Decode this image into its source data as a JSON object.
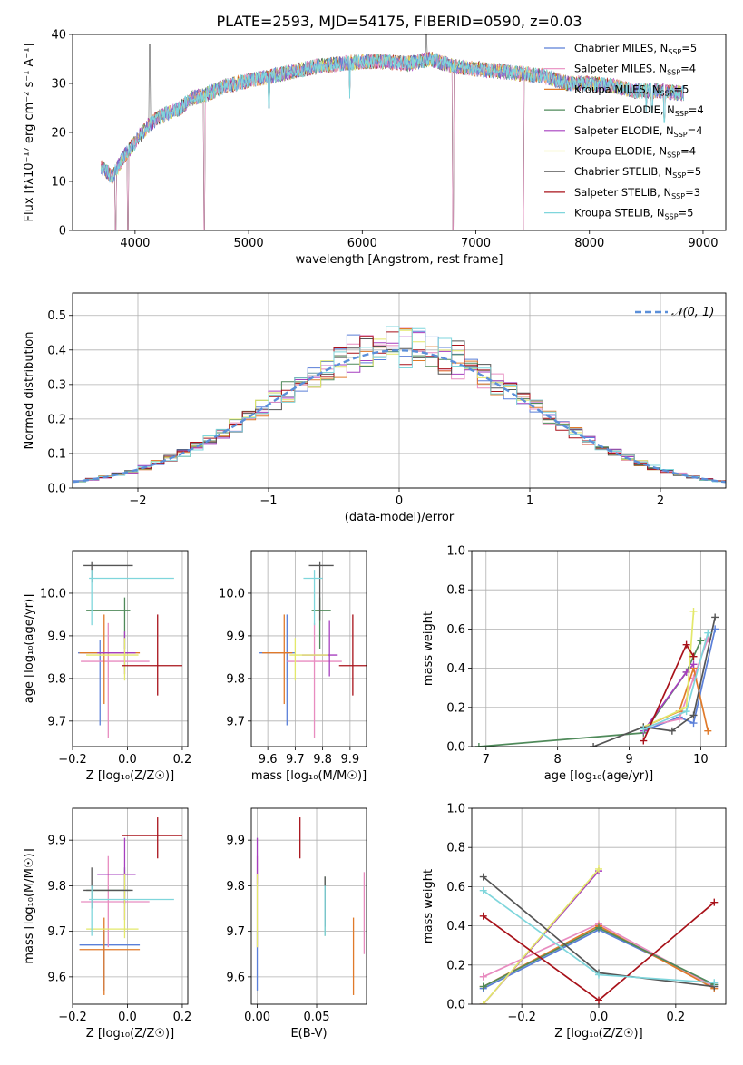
{
  "figure_title": "PLATE=2593, MJD=54175, FIBERID=0590, z=0.03",
  "colors": {
    "Chabrier MILES": "#5a7fd8",
    "Salpeter MILES": "#e88cc0",
    "Kroupa MILES": "#e07a2a",
    "Chabrier ELODIE": "#4f8a5a",
    "Salpeter ELODIE": "#a63fbf",
    "Kroupa ELODIE": "#e3e86a",
    "Chabrier STELIB": "#555555",
    "Salpeter STELIB": "#a8121a",
    "Kroupa STELIB": "#7fd6dc"
  },
  "legend": [
    {
      "model": "Chabrier MILES",
      "base": "Chabrier MILES, N",
      "sub": "SSP",
      "tail": "=5"
    },
    {
      "model": "Salpeter MILES",
      "base": "Salpeter MILES, N",
      "sub": "SSP",
      "tail": "=4"
    },
    {
      "model": "Kroupa MILES",
      "base": "Kroupa MILES, N",
      "sub": "SSP",
      "tail": "=5"
    },
    {
      "model": "Chabrier ELODIE",
      "base": "Chabrier ELODIE, N",
      "sub": "SSP",
      "tail": "=4"
    },
    {
      "model": "Salpeter ELODIE",
      "base": "Salpeter ELODIE, N",
      "sub": "SSP",
      "tail": "=4"
    },
    {
      "model": "Kroupa ELODIE",
      "base": "Kroupa ELODIE, N",
      "sub": "SSP",
      "tail": "=4"
    },
    {
      "model": "Chabrier STELIB",
      "base": "Chabrier STELIB, N",
      "sub": "SSP",
      "tail": "=5"
    },
    {
      "model": "Salpeter STELIB",
      "base": "Salpeter STELIB, N",
      "sub": "SSP",
      "tail": "=3"
    },
    {
      "model": "Kroupa STELIB",
      "base": "Kroupa STELIB, N",
      "sub": "SSP",
      "tail": "=5"
    }
  ],
  "chart_data": [
    {
      "id": "spectrum",
      "type": "line",
      "xlabel": "wavelength [Angstrom, rest frame]",
      "ylabel": "Flux [fλ10⁻¹⁷ erg cm⁻² s⁻¹ A⁻¹]",
      "xlim": [
        3450,
        9200
      ],
      "ylim": [
        0,
        40
      ],
      "xticks": [
        4000,
        5000,
        6000,
        7000,
        8000,
        9000
      ],
      "yticks": [
        0,
        10,
        20,
        30,
        40
      ],
      "grid": false,
      "legend_position": "top-right",
      "continuum": [
        [
          3700,
          13
        ],
        [
          3800,
          11
        ],
        [
          3900,
          15
        ],
        [
          4000,
          18
        ],
        [
          4100,
          21
        ],
        [
          4200,
          23
        ],
        [
          4300,
          24
        ],
        [
          4400,
          25
        ],
        [
          4500,
          27
        ],
        [
          4600,
          27.5
        ],
        [
          4700,
          28.5
        ],
        [
          4800,
          29.5
        ],
        [
          4900,
          30
        ],
        [
          5000,
          30.5
        ],
        [
          5100,
          31
        ],
        [
          5200,
          31.5
        ],
        [
          5400,
          32.5
        ],
        [
          5600,
          33.5
        ],
        [
          5800,
          34
        ],
        [
          6000,
          34.5
        ],
        [
          6200,
          34.5
        ],
        [
          6400,
          34
        ],
        [
          6600,
          35
        ],
        [
          6800,
          33.5
        ],
        [
          7000,
          33
        ],
        [
          7200,
          32.5
        ],
        [
          7400,
          32
        ],
        [
          7600,
          31.5
        ],
        [
          7800,
          30
        ],
        [
          8000,
          30
        ],
        [
          8200,
          29.5
        ],
        [
          8400,
          28.5
        ],
        [
          8600,
          28.5
        ],
        [
          8800,
          28
        ]
      ],
      "dips": [
        [
          3830,
          0
        ],
        [
          3935,
          0
        ],
        [
          4610,
          0
        ],
        [
          6800,
          0
        ],
        [
          7420,
          0
        ],
        [
          5180,
          25
        ],
        [
          5890,
          27
        ],
        [
          8500,
          24
        ],
        [
          8550,
          24
        ],
        [
          8660,
          22
        ]
      ],
      "spikes": [
        [
          4130,
          38
        ],
        [
          6563,
          40
        ]
      ]
    },
    {
      "id": "residual-histogram",
      "type": "histogram",
      "xlabel": "(data-model)/error",
      "ylabel": "Normed distribution",
      "xlim": [
        -2.5,
        2.5
      ],
      "ylim": [
        0,
        0.565
      ],
      "xticks": [
        -2,
        -1,
        0,
        1,
        2
      ],
      "yticks": [
        0.0,
        0.1,
        0.2,
        0.3,
        0.4,
        0.5
      ],
      "grid": true,
      "legend_position": "top-right",
      "reference_curve": {
        "label": "𝒩(0, 1)",
        "mean": 0,
        "sigma": 1
      },
      "bin_width": 0.1
    },
    {
      "id": "age-vs-Z",
      "type": "errorbar",
      "xlabel": "Z [log₁₀(Z/Z☉)]",
      "ylabel": "age  [log₁₀(age/yr)]",
      "xlim": [
        -0.2,
        0.22
      ],
      "ylim": [
        9.64,
        10.1
      ],
      "xticks": [
        -0.2,
        0.0,
        0.2
      ],
      "yticks": [
        9.7,
        9.8,
        9.9,
        10.0
      ],
      "grid": true,
      "points": [
        {
          "model": "Chabrier MILES",
          "x": -0.1,
          "xerr": [
            0.08,
            0.1
          ],
          "y": 9.86,
          "yerr": [
            0.17,
            0.03
          ]
        },
        {
          "model": "Salpeter MILES",
          "x": -0.07,
          "xerr": [
            0.1,
            0.15
          ],
          "y": 9.84,
          "yerr": [
            0.18,
            0.09
          ]
        },
        {
          "model": "Kroupa MILES",
          "x": -0.085,
          "xerr": [
            0.09,
            0.13
          ],
          "y": 9.86,
          "yerr": [
            0.12,
            0.09
          ]
        },
        {
          "model": "Chabrier ELODIE",
          "x": -0.01,
          "xerr": [
            0.14,
            0.02
          ],
          "y": 9.96,
          "yerr": [
            0.09,
            0.03
          ]
        },
        {
          "model": "Salpeter ELODIE",
          "x": -0.01,
          "xerr": [
            0.1,
            0.04
          ],
          "y": 9.86,
          "yerr": [
            0.05,
            0.05
          ]
        },
        {
          "model": "Kroupa ELODIE",
          "x": -0.01,
          "xerr": [
            0.14,
            0.05
          ],
          "y": 9.855,
          "yerr": [
            0.06,
            0.04
          ]
        },
        {
          "model": "Chabrier STELIB",
          "x": -0.13,
          "xerr": [
            0.03,
            0.15
          ],
          "y": 10.065,
          "yerr": [
            0.04,
            0.01
          ]
        },
        {
          "model": "Salpeter STELIB",
          "x": 0.11,
          "xerr": [
            0.13,
            0.09
          ],
          "y": 9.83,
          "yerr": [
            0.07,
            0.12
          ]
        },
        {
          "model": "Kroupa STELIB",
          "x": -0.13,
          "xerr": [
            0.01,
            0.3
          ],
          "y": 10.035,
          "yerr": [
            0.11,
            0.02
          ]
        }
      ]
    },
    {
      "id": "age-vs-mass",
      "type": "errorbar",
      "xlabel": "mass [log₁₀(M/M☉)]",
      "ylabel": "",
      "xlim": [
        9.54,
        9.96
      ],
      "ylim": [
        9.64,
        10.1
      ],
      "xticks": [
        9.6,
        9.7,
        9.8,
        9.9
      ],
      "yticks": [
        9.7,
        9.8,
        9.9,
        10.0
      ],
      "grid": true,
      "points": [
        {
          "model": "Chabrier MILES",
          "x": 9.67,
          "xerr": [
            0.1,
            0.03
          ],
          "y": 9.86,
          "yerr": [
            0.17,
            0.09
          ]
        },
        {
          "model": "Salpeter MILES",
          "x": 9.77,
          "xerr": [
            0.1,
            0.1
          ],
          "y": 9.84,
          "yerr": [
            0.18,
            0.09
          ]
        },
        {
          "model": "Kroupa MILES",
          "x": 9.66,
          "xerr": [
            0.08,
            0.03
          ],
          "y": 9.86,
          "yerr": [
            0.12,
            0.09
          ]
        },
        {
          "model": "Chabrier ELODIE",
          "x": 9.79,
          "xerr": [
            0.03,
            0.04
          ],
          "y": 9.96,
          "yerr": [
            0.09,
            0.03
          ]
        },
        {
          "model": "Salpeter ELODIE",
          "x": 9.825,
          "xerr": [
            0.1,
            0.03
          ],
          "y": 9.855,
          "yerr": [
            0.05,
            0.08
          ]
        },
        {
          "model": "Kroupa ELODIE",
          "x": 9.7,
          "xerr": [
            0.02,
            0.12
          ],
          "y": 9.855,
          "yerr": [
            0.06,
            0.04
          ]
        },
        {
          "model": "Chabrier STELIB",
          "x": 9.79,
          "xerr": [
            0.04,
            0.05
          ],
          "y": 10.065,
          "yerr": [
            0.13,
            0.01
          ]
        },
        {
          "model": "Salpeter STELIB",
          "x": 9.91,
          "xerr": [
            0.05,
            0.05
          ],
          "y": 9.83,
          "yerr": [
            0.07,
            0.12
          ]
        },
        {
          "model": "Kroupa STELIB",
          "x": 9.77,
          "xerr": [
            0.04,
            0.03
          ],
          "y": 10.035,
          "yerr": [
            0.11,
            0.02
          ]
        }
      ]
    },
    {
      "id": "mass-weight-vs-age",
      "type": "line",
      "xlabel": "age  [log₁₀(age/yr)]",
      "ylabel": "mass weight",
      "xlim": [
        6.8,
        10.35
      ],
      "ylim": [
        0,
        1
      ],
      "xticks": [
        7,
        8,
        9,
        10
      ],
      "yticks": [
        0.0,
        0.2,
        0.4,
        0.6,
        0.8,
        1.0
      ],
      "grid": true,
      "series": [
        {
          "model": "Chabrier MILES",
          "x": [
            9.2,
            9.7,
            9.9,
            10.2
          ],
          "y": [
            0.08,
            0.15,
            0.12,
            0.6
          ]
        },
        {
          "model": "Salpeter MILES",
          "x": [
            9.2,
            9.7,
            9.9,
            10.1
          ],
          "y": [
            0.1,
            0.14,
            0.35,
            0.55
          ]
        },
        {
          "model": "Kroupa MILES",
          "x": [
            9.2,
            9.7,
            9.9,
            10.1
          ],
          "y": [
            0.1,
            0.18,
            0.4,
            0.08
          ]
        },
        {
          "model": "Chabrier ELODIE",
          "x": [
            6.9,
            9.2,
            9.8,
            10.0
          ],
          "y": [
            0.0,
            0.07,
            0.38,
            0.54
          ]
        },
        {
          "model": "Salpeter ELODIE",
          "x": [
            9.2,
            9.8,
            9.9
          ],
          "y": [
            0.08,
            0.38,
            0.42
          ]
        },
        {
          "model": "Kroupa ELODIE",
          "x": [
            9.2,
            9.8,
            9.9
          ],
          "y": [
            0.1,
            0.2,
            0.69
          ]
        },
        {
          "model": "Chabrier STELIB",
          "x": [
            8.5,
            9.2,
            9.6,
            9.9,
            10.2
          ],
          "y": [
            0.0,
            0.1,
            0.08,
            0.16,
            0.66
          ]
        },
        {
          "model": "Salpeter STELIB",
          "x": [
            9.2,
            9.8,
            9.9
          ],
          "y": [
            0.03,
            0.52,
            0.46
          ]
        },
        {
          "model": "Kroupa STELIB",
          "x": [
            9.2,
            9.8,
            10.1
          ],
          "y": [
            0.09,
            0.18,
            0.58
          ]
        }
      ]
    },
    {
      "id": "mass-vs-Z",
      "type": "errorbar",
      "xlabel": "Z [log₁₀(Z/Z☉)]",
      "ylabel": "mass [log₁₀(M/M☉)]",
      "xlim": [
        -0.2,
        0.22
      ],
      "ylim": [
        9.54,
        9.97
      ],
      "xticks": [
        -0.2,
        0.0,
        0.2
      ],
      "yticks": [
        9.6,
        9.7,
        9.8,
        9.9
      ],
      "grid": true,
      "points": [
        {
          "model": "Chabrier MILES",
          "x": -0.085,
          "xerr": [
            0.09,
            0.13
          ],
          "y": 9.67,
          "yerr": [
            0.1,
            0.03
          ]
        },
        {
          "model": "Salpeter MILES",
          "x": -0.07,
          "xerr": [
            0.1,
            0.15
          ],
          "y": 9.765,
          "yerr": [
            0.1,
            0.1
          ]
        },
        {
          "model": "Kroupa MILES",
          "x": -0.085,
          "xerr": [
            0.09,
            0.13
          ],
          "y": 9.66,
          "yerr": [
            0.1,
            0.07
          ]
        },
        {
          "model": "Chabrier ELODIE",
          "x": -0.01,
          "xerr": [
            0.14,
            0.02
          ],
          "y": 9.79,
          "yerr": [
            0.03,
            0.05
          ]
        },
        {
          "model": "Salpeter ELODIE",
          "x": -0.01,
          "xerr": [
            0.1,
            0.04
          ],
          "y": 9.825,
          "yerr": [
            0.1,
            0.08
          ]
        },
        {
          "model": "Kroupa ELODIE",
          "x": -0.01,
          "xerr": [
            0.14,
            0.05
          ],
          "y": 9.705,
          "yerr": [
            0.02,
            0.12
          ]
        },
        {
          "model": "Chabrier STELIB",
          "x": -0.13,
          "xerr": [
            0.03,
            0.15
          ],
          "y": 9.79,
          "yerr": [
            0.04,
            0.05
          ]
        },
        {
          "model": "Salpeter STELIB",
          "x": 0.11,
          "xerr": [
            0.13,
            0.09
          ],
          "y": 9.91,
          "yerr": [
            0.05,
            0.04
          ]
        },
        {
          "model": "Kroupa STELIB",
          "x": -0.13,
          "xerr": [
            0.01,
            0.3
          ],
          "y": 9.77,
          "yerr": [
            0.08,
            0.03
          ]
        }
      ]
    },
    {
      "id": "mass-vs-EBV",
      "type": "errorbar",
      "xlabel": "E(B-V)",
      "ylabel": "",
      "xlim": [
        -0.005,
        0.092
      ],
      "ylim": [
        9.54,
        9.97
      ],
      "xticks": [
        0.0,
        0.05
      ],
      "xticklabels": [
        "0.00",
        "0.05"
      ],
      "yticks": [
        9.6,
        9.7,
        9.8,
        9.9
      ],
      "grid": true,
      "points": [
        {
          "model": "Chabrier MILES",
          "x": 0.0,
          "y": 9.67,
          "yerr": [
            0.1,
            0.03
          ]
        },
        {
          "model": "Salpeter MILES",
          "x": 0.0,
          "y": 9.765,
          "yerr": [
            0.1,
            0.1
          ]
        },
        {
          "model": "Kroupa MILES",
          "x": 0.081,
          "y": 9.66,
          "yerr": [
            0.1,
            0.07
          ]
        },
        {
          "model": "Chabrier ELODIE",
          "x": 0.057,
          "y": 9.79,
          "yerr": [
            0.1,
            0.03
          ]
        },
        {
          "model": "Salpeter ELODIE",
          "x": 0.0,
          "y": 9.825,
          "yerr": [
            0.02,
            0.08
          ]
        },
        {
          "model": "Kroupa ELODIE",
          "x": 0.0,
          "y": 9.705,
          "yerr": [
            0.04,
            0.12
          ]
        },
        {
          "model": "Chabrier STELIB",
          "x": 0.057,
          "y": 9.79,
          "yerr": [
            0.08,
            0.03
          ]
        },
        {
          "model": "Salpeter STELIB",
          "x": 0.036,
          "y": 9.91,
          "yerr": [
            0.05,
            0.04
          ]
        },
        {
          "model": "Kroupa STELIB",
          "x": 0.057,
          "y": 9.77,
          "yerr": [
            0.08,
            0.03
          ]
        },
        {
          "model": "Salpeter MILES",
          "x": 0.09,
          "y": 9.74,
          "yerr": [
            0.09,
            0.09
          ]
        }
      ]
    },
    {
      "id": "mass-weight-vs-Z",
      "type": "line",
      "xlabel": "Z [log₁₀(Z/Z☉)]",
      "ylabel": "mass weight",
      "xlim": [
        -0.33,
        0.33
      ],
      "ylim": [
        0,
        1
      ],
      "xticks": [
        -0.2,
        0.0,
        0.2
      ],
      "yticks": [
        0.0,
        0.2,
        0.4,
        0.6,
        0.8,
        1.0
      ],
      "grid": true,
      "series": [
        {
          "model": "Chabrier MILES",
          "x": [
            -0.3,
            0.0,
            0.3
          ],
          "y": [
            0.08,
            0.38,
            0.1
          ]
        },
        {
          "model": "Salpeter MILES",
          "x": [
            -0.3,
            0.0,
            0.3
          ],
          "y": [
            0.14,
            0.41,
            0.09
          ]
        },
        {
          "model": "Kroupa MILES",
          "x": [
            -0.3,
            0.0,
            0.3
          ],
          "y": [
            0.09,
            0.4,
            0.08
          ]
        },
        {
          "model": "Chabrier ELODIE",
          "x": [
            -0.3,
            0.0,
            0.3
          ],
          "y": [
            0.09,
            0.39,
            0.1
          ]
        },
        {
          "model": "Salpeter ELODIE",
          "x": [
            -0.3,
            0.0
          ],
          "y": [
            0.0,
            0.68
          ]
        },
        {
          "model": "Kroupa ELODIE",
          "x": [
            -0.3,
            0.0
          ],
          "y": [
            0.0,
            0.69
          ]
        },
        {
          "model": "Chabrier STELIB",
          "x": [
            -0.3,
            0.0,
            0.3
          ],
          "y": [
            0.65,
            0.16,
            0.09
          ]
        },
        {
          "model": "Salpeter STELIB",
          "x": [
            -0.3,
            0.0,
            0.3
          ],
          "y": [
            0.45,
            0.02,
            0.52
          ]
        },
        {
          "model": "Kroupa STELIB",
          "x": [
            -0.3,
            0.0,
            0.3
          ],
          "y": [
            0.58,
            0.15,
            0.11
          ]
        }
      ]
    }
  ]
}
